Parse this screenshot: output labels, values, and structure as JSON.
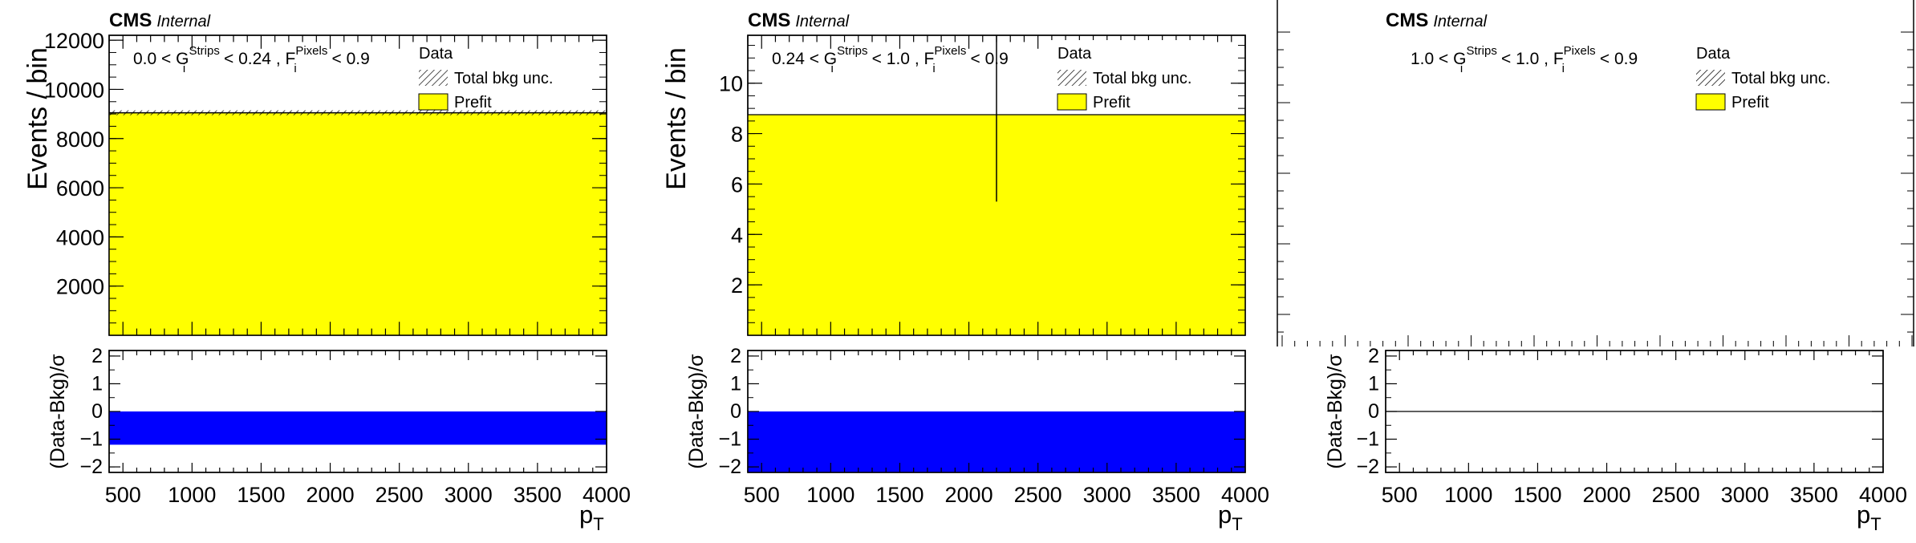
{
  "colors": {
    "prefit_fill": "#ffff00",
    "pull_fill": "#0000ff",
    "frame": "#000000"
  },
  "experiment_label": "CMS",
  "status_label": "Internal",
  "x_axis_label": "p",
  "x_axis_label_sub": "T",
  "y_axis_label": "Events / bin",
  "ratio_y_label": "(Data-Bkg)/σ",
  "legend": {
    "data": "Data",
    "unc": "Total bkg unc.",
    "prefit": "Prefit"
  },
  "chart_data": [
    {
      "type": "bar",
      "panel": "left",
      "region": {
        "low": "0.0",
        "high": "0.24",
        "g_sup": "Strips",
        "f_sup": "Pixels",
        "f_high": "0.9"
      },
      "x": [
        400,
        4000
      ],
      "xlim": [
        400,
        4000
      ],
      "xticks": [
        "500",
        "1000",
        "1500",
        "2000",
        "2500",
        "3000",
        "3500",
        "4000"
      ],
      "prefit": [
        9050
      ],
      "data_uncertainty": [
        100
      ],
      "ylim": [
        0,
        12200
      ],
      "yticks": [
        "2000",
        "4000",
        "6000",
        "8000",
        "10000",
        "12000"
      ],
      "pull": [
        -1.2
      ],
      "pull_ylim": [
        -2.2,
        2.2
      ],
      "pull_yticks": [
        "-2",
        "-1",
        "0",
        "1",
        "2"
      ],
      "legend_position": "top-right"
    },
    {
      "type": "bar",
      "panel": "middle",
      "region": {
        "low": "0.24",
        "high": "1.0",
        "g_sup": "Strips",
        "f_sup": "Pixels",
        "f_high": "0.9"
      },
      "x": [
        400,
        4000
      ],
      "xlim": [
        400,
        4000
      ],
      "xticks": [
        "500",
        "1000",
        "1500",
        "2000",
        "2500",
        "3000",
        "3500",
        "4000"
      ],
      "prefit": [
        8.75
      ],
      "data_point": {
        "x": 2200,
        "y": 8.75,
        "y_low": 5.3,
        "y_high": 11.9
      },
      "ylim": [
        0,
        11.9
      ],
      "yticks": [
        "2",
        "4",
        "6",
        "8",
        "10"
      ],
      "pull": [
        -2.2
      ],
      "pull_ylim": [
        -2.2,
        2.2
      ],
      "pull_yticks": [
        "-2",
        "-1",
        "0",
        "1",
        "2"
      ],
      "legend_position": "top-right"
    },
    {
      "type": "bar",
      "panel": "right",
      "region": {
        "low": "1.0",
        "high": "1.0",
        "g_sup": "Strips",
        "f_sup": "Pixels",
        "f_high": "0.9"
      },
      "x": [
        400,
        4000
      ],
      "xlim": [
        400,
        4000
      ],
      "xticks": [
        "500",
        "1000",
        "1500",
        "2000",
        "2500",
        "3000",
        "3500",
        "4000"
      ],
      "prefit": [],
      "pull": [
        0
      ],
      "pull_ylim": [
        -2.2,
        2.2
      ],
      "pull_yticks": [
        "-2",
        "-1",
        "0",
        "1",
        "2"
      ],
      "legend_position": "top-right"
    }
  ]
}
